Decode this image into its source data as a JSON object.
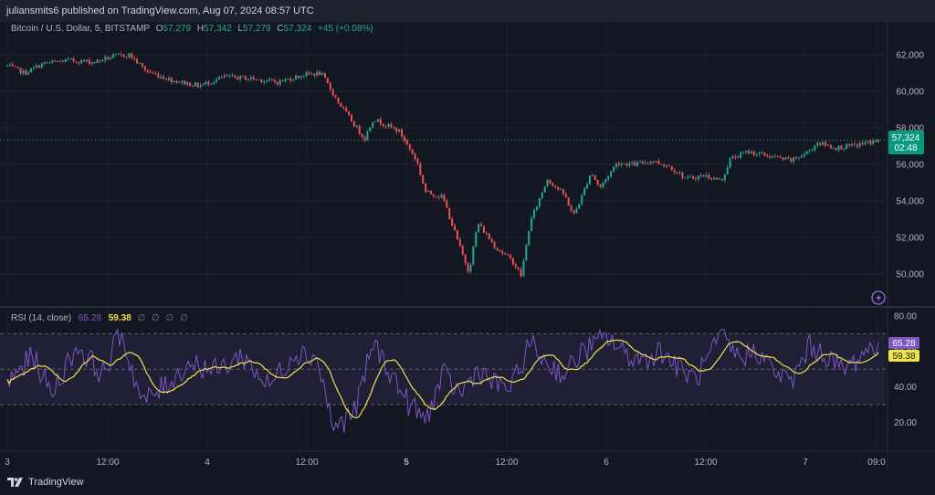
{
  "header": {
    "published": "juliansmits6 published on TradingView.com, Aug 07, 2024 08:57 UTC"
  },
  "brand": {
    "name": "TradingView"
  },
  "legend": {
    "symbol": "Bitcoin / U.S. Dollar, 5, BITSTAMP",
    "open_label": "O",
    "open": "57,279",
    "high_label": "H",
    "high": "57,342",
    "low_label": "L",
    "low": "57,279",
    "close_label": "C",
    "close": "57,324",
    "change": "+45 (+0.08%)"
  },
  "rsi_legend": {
    "label": "RSI (14, close)",
    "rsi": "65.28",
    "ma": "59.38",
    "na": [
      "∅",
      "∅",
      "∅",
      "∅"
    ]
  },
  "price_badge": {
    "price": "57,324",
    "countdown": "02:48"
  },
  "rsi_badges": {
    "rsi": "65.28",
    "ma": "59.38"
  },
  "colors": {
    "up": "#26a69a",
    "down": "#ef5350",
    "rsi": "#7e57c2",
    "rsi_ma": "#f0e34a",
    "background": "#131722"
  },
  "icons": {
    "brand": "tradingview-logo-icon",
    "alert": "lightning-icon"
  },
  "chart_data": [
    {
      "type": "candlestick",
      "title": "Bitcoin / U.S. Dollar, 5, BITSTAMP",
      "y_ticks": [
        "62,000",
        "60,000",
        "58,000",
        "56,000",
        "54,000",
        "52,000",
        "50,000"
      ],
      "y_tick_values": [
        62000,
        60000,
        58000,
        56000,
        54000,
        52000,
        50000
      ],
      "ylim": [
        48700,
        63000
      ],
      "x_ticks": [
        "3",
        "12:00",
        "4",
        "12:00",
        "5",
        "12:00",
        "6",
        "12:00",
        "7",
        "09:0"
      ],
      "x_tick_bold": [
        false,
        false,
        false,
        false,
        true,
        false,
        false,
        false,
        false,
        false
      ],
      "last_price": 57324,
      "path": [
        [
          0,
          61400
        ],
        [
          0.02,
          61000
        ],
        [
          0.04,
          61500
        ],
        [
          0.07,
          61700
        ],
        [
          0.1,
          61600
        ],
        [
          0.12,
          61900
        ],
        [
          0.14,
          62000
        ],
        [
          0.16,
          61100
        ],
        [
          0.19,
          60600
        ],
        [
          0.22,
          60300
        ],
        [
          0.25,
          60800
        ],
        [
          0.28,
          60700
        ],
        [
          0.31,
          60500
        ],
        [
          0.34,
          60900
        ],
        [
          0.36,
          61000
        ],
        [
          0.38,
          59400
        ],
        [
          0.41,
          57400
        ],
        [
          0.42,
          58500
        ],
        [
          0.45,
          57800
        ],
        [
          0.47,
          56200
        ],
        [
          0.48,
          54500
        ],
        [
          0.5,
          54200
        ],
        [
          0.52,
          51400
        ],
        [
          0.53,
          50100
        ],
        [
          0.54,
          52800
        ],
        [
          0.56,
          51500
        ],
        [
          0.58,
          50700
        ],
        [
          0.59,
          49900
        ],
        [
          0.6,
          52800
        ],
        [
          0.62,
          55200
        ],
        [
          0.64,
          54300
        ],
        [
          0.65,
          53200
        ],
        [
          0.66,
          54300
        ],
        [
          0.67,
          55600
        ],
        [
          0.68,
          54700
        ],
        [
          0.7,
          56100
        ],
        [
          0.72,
          56000
        ],
        [
          0.74,
          56200
        ],
        [
          0.76,
          55900
        ],
        [
          0.78,
          55200
        ],
        [
          0.8,
          55400
        ],
        [
          0.82,
          55100
        ],
        [
          0.83,
          56300
        ],
        [
          0.85,
          56700
        ],
        [
          0.87,
          56500
        ],
        [
          0.9,
          56200
        ],
        [
          0.92,
          56700
        ],
        [
          0.93,
          57200
        ],
        [
          0.95,
          56900
        ],
        [
          0.97,
          57000
        ],
        [
          1.0,
          57324
        ]
      ]
    },
    {
      "type": "line",
      "title": "RSI (14, close)",
      "y_ticks": [
        "80.00",
        "60.00",
        "40.00",
        "20.00"
      ],
      "y_tick_values": [
        80,
        60,
        40,
        20
      ],
      "ylim": [
        10,
        82
      ],
      "bands": [
        70,
        50,
        30
      ],
      "series": [
        {
          "name": "RSI",
          "last": 65.28,
          "pivots": [
            [
              0,
              42
            ],
            [
              0.03,
              58
            ],
            [
              0.05,
              36
            ],
            [
              0.08,
              63
            ],
            [
              0.11,
              47
            ],
            [
              0.13,
              71
            ],
            [
              0.155,
              31
            ],
            [
              0.18,
              40
            ],
            [
              0.21,
              54
            ],
            [
              0.24,
              49
            ],
            [
              0.27,
              58
            ],
            [
              0.3,
              40
            ],
            [
              0.33,
              60
            ],
            [
              0.355,
              57
            ],
            [
              0.375,
              16
            ],
            [
              0.4,
              27
            ],
            [
              0.42,
              65
            ],
            [
              0.44,
              48
            ],
            [
              0.46,
              31
            ],
            [
              0.48,
              21
            ],
            [
              0.5,
              47
            ],
            [
              0.52,
              36
            ],
            [
              0.54,
              50
            ],
            [
              0.56,
              41
            ],
            [
              0.58,
              40
            ],
            [
              0.6,
              65
            ],
            [
              0.62,
              53
            ],
            [
              0.64,
              47
            ],
            [
              0.66,
              60
            ],
            [
              0.69,
              68
            ],
            [
              0.71,
              58
            ],
            [
              0.73,
              55
            ],
            [
              0.75,
              61
            ],
            [
              0.77,
              51
            ],
            [
              0.79,
              44
            ],
            [
              0.82,
              68
            ],
            [
              0.84,
              56
            ],
            [
              0.86,
              61
            ],
            [
              0.88,
              49
            ],
            [
              0.9,
              42
            ],
            [
              0.92,
              63
            ],
            [
              0.94,
              58
            ],
            [
              0.96,
              49
            ],
            [
              0.98,
              58
            ],
            [
              1.0,
              65.28
            ]
          ]
        },
        {
          "name": "RSI-based MA",
          "last": 59.38
        }
      ]
    }
  ]
}
